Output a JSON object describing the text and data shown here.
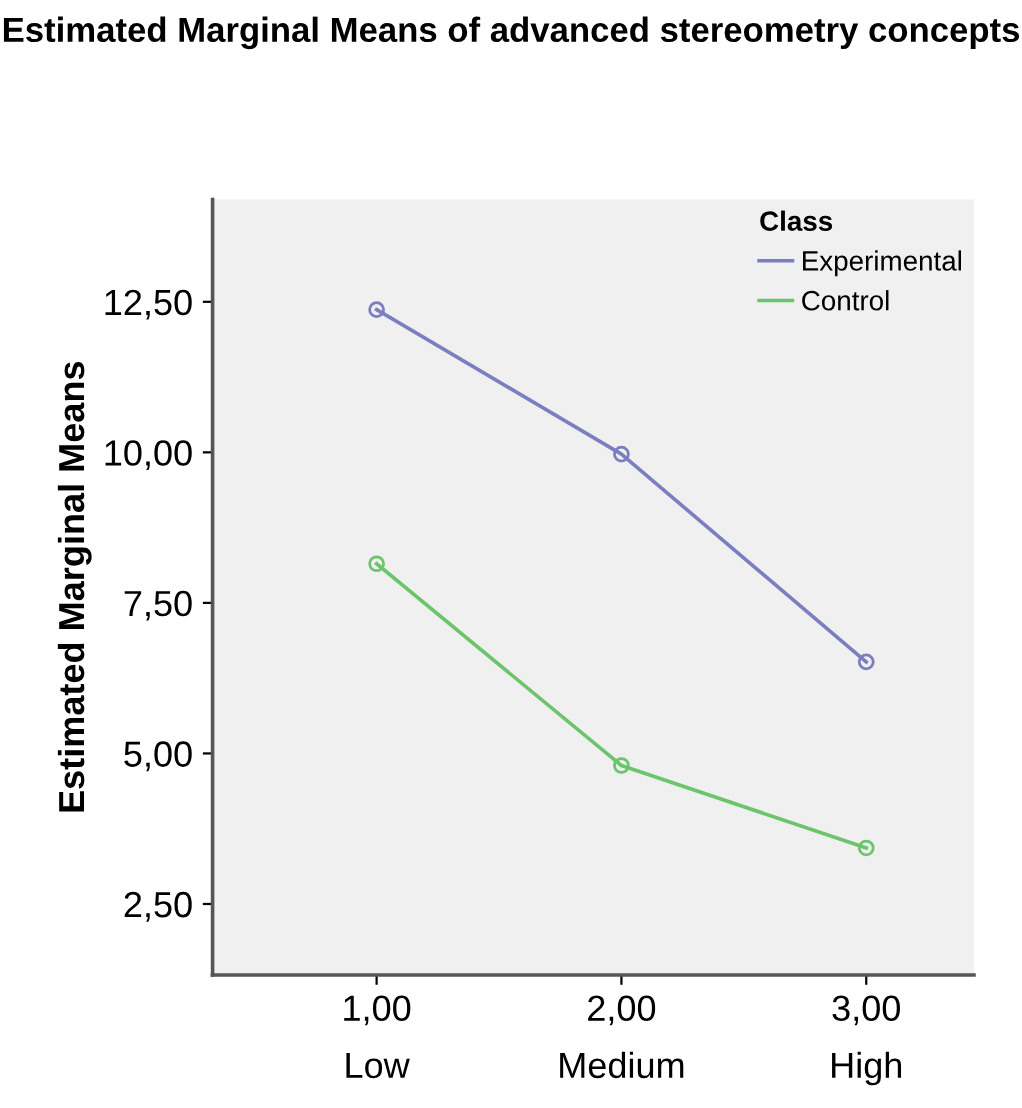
{
  "chart_data": {
    "type": "line",
    "title": "Estimated Marginal Means of advanced stereometry concepts",
    "ylabel": "Estimated Marginal Means",
    "legend_title": "Class",
    "x": [
      1,
      2,
      3
    ],
    "series": [
      {
        "name": "Experimental",
        "color": "#7b7fc0",
        "values": [
          12.37,
          9.97,
          6.52
        ]
      },
      {
        "name": "Control",
        "color": "#6cc46c",
        "values": [
          8.15,
          4.8,
          3.43
        ]
      }
    ],
    "xlim": [
      0.33,
      3.44
    ],
    "xticks": [
      {
        "value": 1,
        "label": "1,00\nLow"
      },
      {
        "value": 2,
        "label": "2,00\nMedium"
      },
      {
        "value": 3,
        "label": "3,00\nHigh"
      }
    ],
    "ylim": [
      1.32,
      14.2
    ],
    "yticks": [
      {
        "value": 2.5,
        "label": "2,50"
      },
      {
        "value": 5,
        "label": "5,00"
      },
      {
        "value": 7.5,
        "label": "7,50"
      },
      {
        "value": 10,
        "label": "10,00"
      },
      {
        "value": 12.5,
        "label": "12,50"
      }
    ],
    "legend": "top right",
    "marker": "circle",
    "line_style": "solid",
    "grid": false
  }
}
